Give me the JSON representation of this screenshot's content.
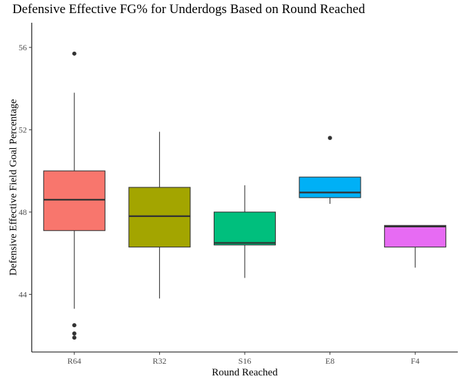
{
  "chart_data": {
    "type": "box",
    "title": "Defensive Effective FG% for Underdogs Based on Round Reached",
    "xlabel": "Round Reached",
    "ylabel": "Defensive Effective Field Goal Percentage",
    "ylim": [
      41.2,
      57.2
    ],
    "yticks": [
      44,
      48,
      52,
      56
    ],
    "ytick_labels": [
      "44",
      "48",
      "52",
      "56"
    ],
    "categories": [
      "R64",
      "R32",
      "S16",
      "E8",
      "F4"
    ],
    "colors": [
      "#F8766D",
      "#A3A500",
      "#00BF7D",
      "#00B0F6",
      "#E76BF3"
    ],
    "boxes": [
      {
        "category": "R64",
        "q1": 47.1,
        "median": 48.6,
        "q3": 50.0,
        "whisker_low": 43.3,
        "whisker_high": 53.8,
        "outliers": [
          55.7,
          42.5,
          42.1,
          41.9
        ]
      },
      {
        "category": "R32",
        "q1": 46.3,
        "median": 47.8,
        "q3": 49.2,
        "whisker_low": 43.8,
        "whisker_high": 51.9,
        "outliers": []
      },
      {
        "category": "S16",
        "q1": 46.4,
        "median": 46.5,
        "q3": 48.0,
        "whisker_low": 44.8,
        "whisker_high": 49.3,
        "outliers": []
      },
      {
        "category": "E8",
        "q1": 48.7,
        "median": 48.95,
        "q3": 49.7,
        "whisker_low": 48.4,
        "whisker_high": 49.7,
        "outliers": [
          51.6
        ]
      },
      {
        "category": "F4",
        "q1": 46.3,
        "median": 47.3,
        "q3": 47.35,
        "whisker_low": 45.3,
        "whisker_high": 47.35,
        "outliers": []
      }
    ],
    "grid": false,
    "legend": "none"
  }
}
